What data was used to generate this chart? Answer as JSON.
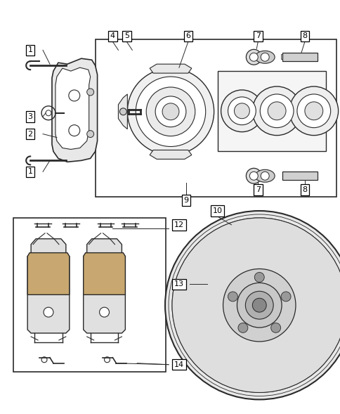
{
  "bg_color": "#ffffff",
  "line_color": "#2a2a2a",
  "label_color": "#000000",
  "label_bg": "#ffffff",
  "figsize": [
    4.85,
    5.89
  ],
  "dpi": 100
}
